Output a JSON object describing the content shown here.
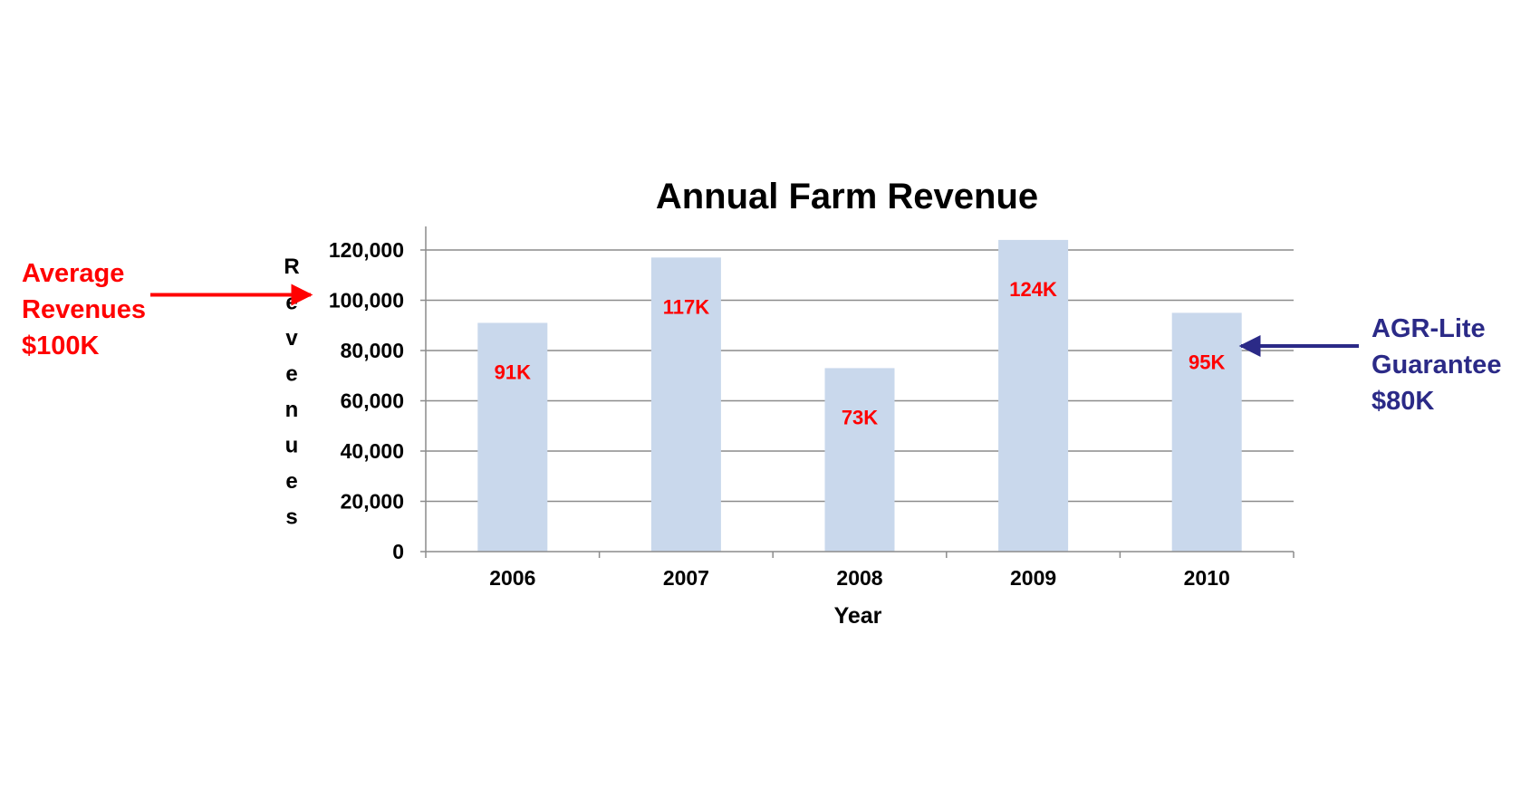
{
  "chart_data": {
    "type": "bar",
    "title": "Annual Farm Revenue",
    "xlabel": "Year",
    "ylabel": "Revenues",
    "categories": [
      "2006",
      "2007",
      "2008",
      "2009",
      "2010"
    ],
    "values": [
      91000,
      117000,
      73000,
      124000,
      95000
    ],
    "data_labels": [
      "91K",
      "117K",
      "73K",
      "124K",
      "95K"
    ],
    "ylim": [
      0,
      120000
    ],
    "yticks": [
      0,
      20000,
      40000,
      60000,
      80000,
      100000,
      120000
    ],
    "ytick_labels": [
      "0",
      "20,000",
      "40,000",
      "60,000",
      "80,000",
      "100,000",
      "120,000"
    ],
    "grid": true,
    "colors": {
      "bar": "#c9d8ec",
      "grid": "#8c8c8c",
      "data_label": "#ff0000"
    },
    "annotations": [
      {
        "lines": [
          "Average",
          "Revenues",
          "$100K"
        ],
        "color": "#ff0000",
        "points_to_value": 100000,
        "side": "left"
      },
      {
        "lines": [
          "AGR-Lite",
          "Guarantee",
          "$80K"
        ],
        "color": "#2b2a87",
        "points_to_value": 80000,
        "side": "right"
      }
    ]
  }
}
